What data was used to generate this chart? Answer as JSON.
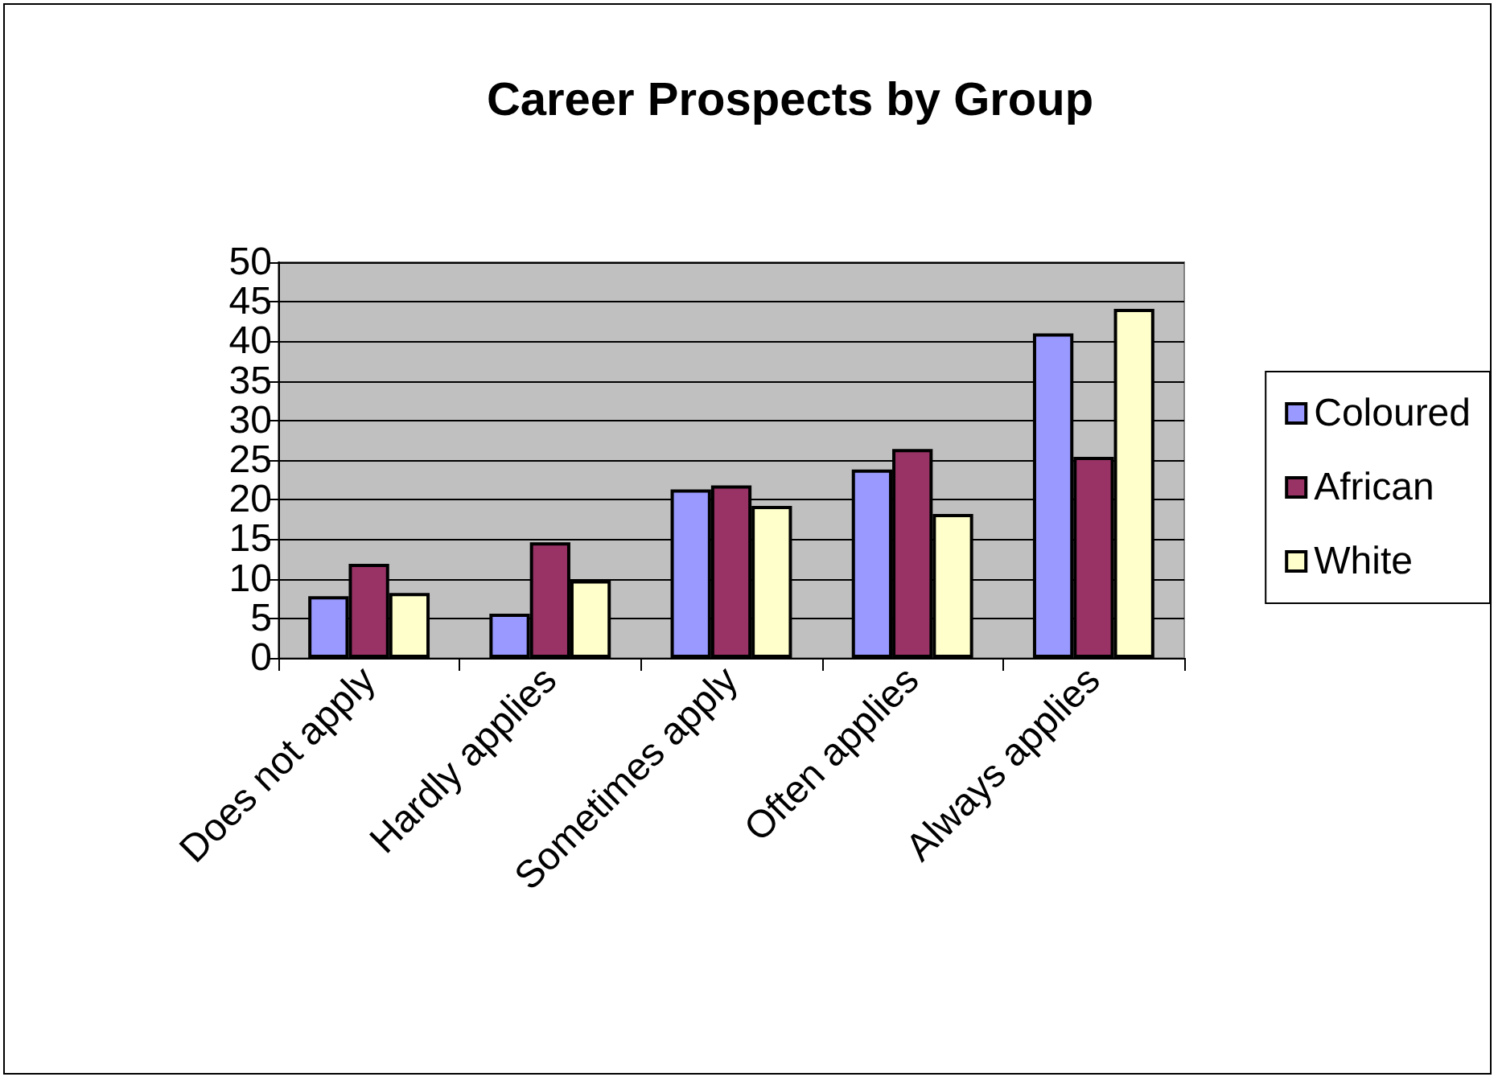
{
  "chart_data": {
    "type": "bar",
    "title": "Career Prospects by Group",
    "categories": [
      "Does not apply",
      "Hardly applies",
      "Sometimes apply",
      "Often applies",
      "Always applies"
    ],
    "series": [
      {
        "name": "Coloured",
        "color": "#9999ff",
        "values": [
          7.8,
          5.6,
          21.3,
          23.8,
          41.0
        ]
      },
      {
        "name": "African",
        "color": "#993366",
        "values": [
          11.9,
          14.6,
          21.8,
          26.4,
          25.4
        ]
      },
      {
        "name": "White",
        "color": "#ffffcc",
        "values": [
          8.2,
          9.8,
          19.2,
          18.2,
          44.1
        ]
      }
    ],
    "ylim": [
      0,
      50
    ],
    "yticks": [
      0,
      5,
      10,
      15,
      20,
      25,
      30,
      35,
      40,
      45,
      50
    ],
    "grid": "y",
    "legend": "right"
  }
}
